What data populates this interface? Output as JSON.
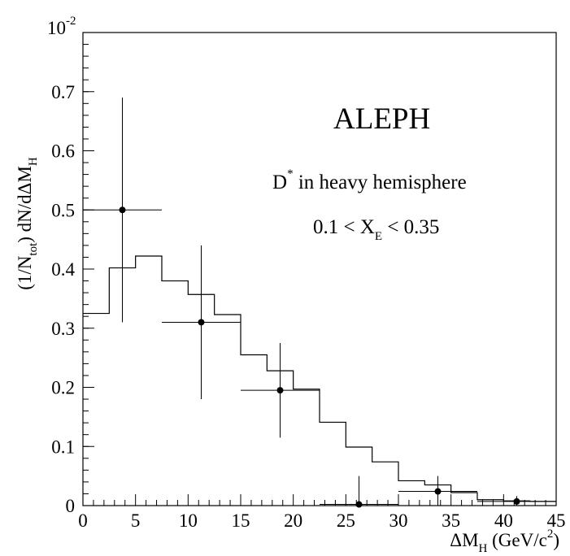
{
  "chart_data": {
    "type": "histogram",
    "experiment": "ALEPH",
    "annotation_line1_base": "D",
    "annotation_line1_sup": "*",
    "annotation_line1_rest": " in heavy hemisphere",
    "annotation_line2_prefix": "0.1 < X",
    "annotation_line2_sub": "E",
    "annotation_line2_suffix": " < 0.35",
    "ylabel_part1": "(1/N",
    "ylabel_sub1": "tot",
    "ylabel_part2": ") dN/dΔM",
    "ylabel_sub2": "H",
    "xlabel_part1": "ΔM",
    "xlabel_sub": "H",
    "xlabel_part2": " (GeV/c",
    "xlabel_sup": "2",
    "xlabel_part3": ")",
    "y_scale_base": "10",
    "y_scale_exp": "-2",
    "xlim": [
      0,
      45
    ],
    "ylim": [
      0,
      0.8
    ],
    "x_ticks": [
      0,
      5,
      10,
      15,
      20,
      25,
      30,
      35,
      40,
      45
    ],
    "x_tick_labels": [
      "0",
      "5",
      "10",
      "15",
      "20",
      "25",
      "30",
      "35",
      "40",
      "45"
    ],
    "y_ticks": [
      0,
      0.1,
      0.2,
      0.3,
      0.4,
      0.5,
      0.6,
      0.7
    ],
    "y_tick_labels": [
      "0",
      "0.1",
      "0.2",
      "0.3",
      "0.4",
      "0.5",
      "0.6",
      "0.7"
    ],
    "histogram": {
      "bin_edges": [
        0,
        2.5,
        5,
        7.5,
        10,
        12.5,
        15,
        17.5,
        20,
        22.5,
        25,
        27.5,
        30,
        32.5,
        35,
        37.5,
        40,
        42.5,
        45
      ],
      "values": [
        0.325,
        0.402,
        0.422,
        0.38,
        0.357,
        0.323,
        0.255,
        0.228,
        0.197,
        0.141,
        0.099,
        0.074,
        0.042,
        0.035,
        0.022,
        0.01,
        0.008,
        0.007
      ]
    },
    "data_points": [
      {
        "x": 3.75,
        "y": 0.5,
        "x_lo": 0,
        "x_hi": 7.5,
        "y_lo": 0.31,
        "y_hi": 0.69
      },
      {
        "x": 11.25,
        "y": 0.31,
        "x_lo": 7.5,
        "x_hi": 15,
        "y_lo": 0.18,
        "y_hi": 0.44
      },
      {
        "x": 18.75,
        "y": 0.195,
        "x_lo": 15,
        "x_hi": 22.5,
        "y_lo": 0.115,
        "y_hi": 0.275
      },
      {
        "x": 26.25,
        "y": 0.002,
        "x_lo": 22.5,
        "x_hi": 30,
        "y_lo": 0,
        "y_hi": 0.05
      },
      {
        "x": 33.75,
        "y": 0.024,
        "x_lo": 30,
        "x_hi": 37.5,
        "y_lo": 0.0,
        "y_hi": 0.05
      },
      {
        "x": 41.25,
        "y": 0.007,
        "x_lo": 37.5,
        "x_hi": 45,
        "y_lo": 0.0,
        "y_hi": 0.016
      }
    ],
    "marker_color": "#000000",
    "line_color": "#000000"
  }
}
